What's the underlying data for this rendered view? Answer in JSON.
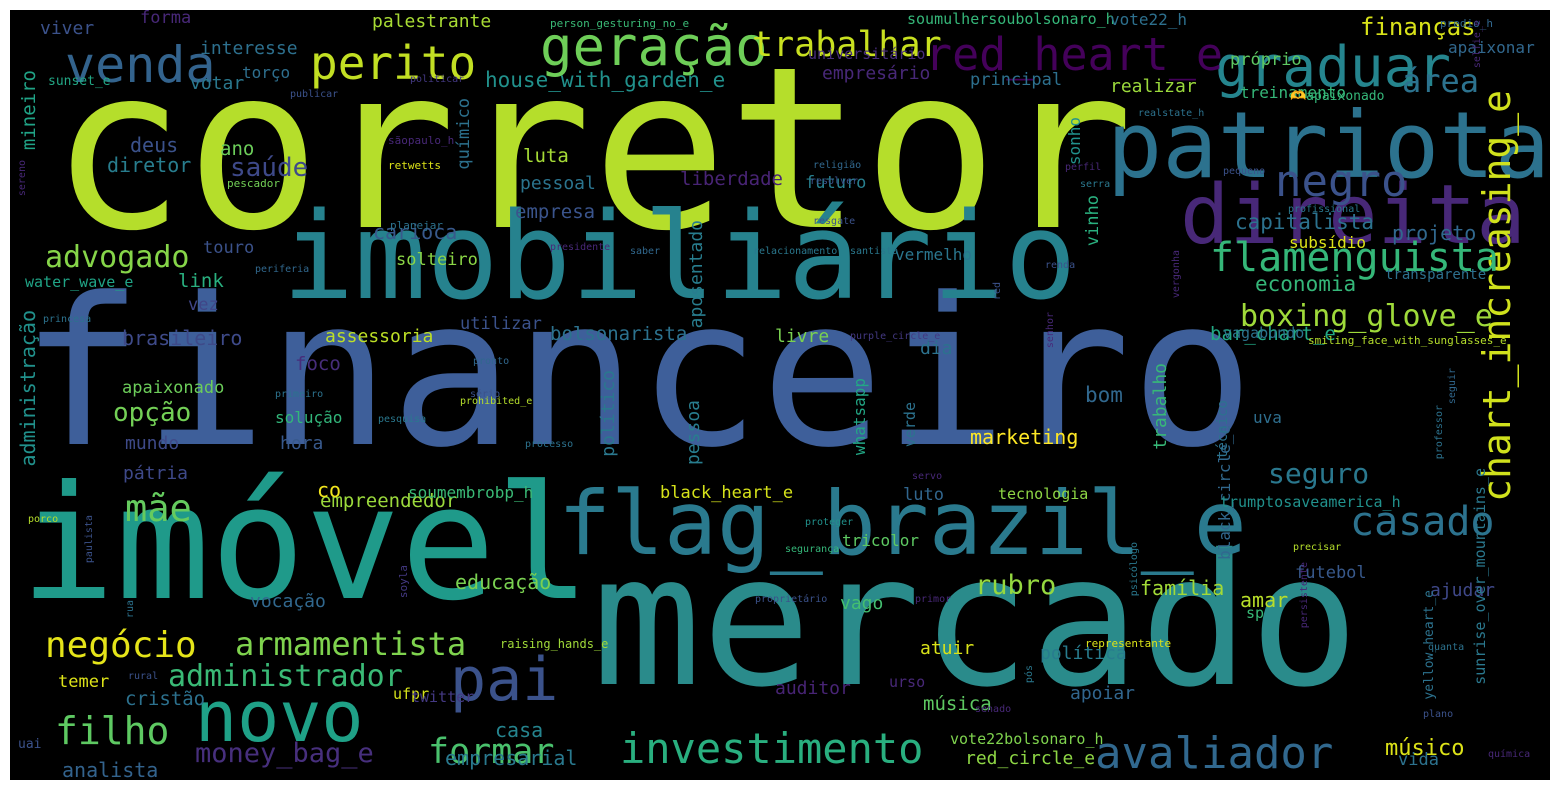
{
  "words": [
    {
      "text": "corretor",
      "color": "#b5de2b"
    },
    {
      "text": "financeiro",
      "color": "#3e5f9a"
    },
    {
      "text": "imobiliário",
      "color": "#26828e"
    },
    {
      "text": "mercado",
      "color": "#2a8b8b"
    },
    {
      "text": "imóvel",
      "color": "#1f9a8a"
    },
    {
      "text": "flag_brazil_e",
      "color": "#2a7a8e"
    },
    {
      "text": "patriota",
      "color": "#2c728e"
    },
    {
      "text": "direita",
      "color": "#482878"
    },
    {
      "text": "geração",
      "color": "#6ece58"
    },
    {
      "text": "perito",
      "color": "#c2df23"
    },
    {
      "text": "venda",
      "color": "#33638d"
    },
    {
      "text": "graduar",
      "color": "#25858e"
    },
    {
      "text": "red_heart_e",
      "color": "#44015a"
    },
    {
      "text": "negro",
      "color": "#3b528b"
    },
    {
      "text": "chart_increasing_e",
      "color": "#d0e11c"
    },
    {
      "text": "flamenguista",
      "color": "#35b779"
    },
    {
      "text": "trabalhar",
      "color": "#c8e020"
    },
    {
      "text": "pai",
      "color": "#3b528b"
    },
    {
      "text": "novo",
      "color": "#1fa187"
    },
    {
      "text": "avaliador",
      "color": "#31688e"
    },
    {
      "text": "investimento",
      "color": "#29af7f"
    },
    {
      "text": "formar",
      "color": "#4ac16d"
    },
    {
      "text": "negócio",
      "color": "#e5e419"
    },
    {
      "text": "armamentista",
      "color": "#7fd34e"
    },
    {
      "text": "administrador",
      "color": "#3aba76"
    },
    {
      "text": "filho",
      "color": "#5ec962"
    },
    {
      "text": "mãe",
      "color": "#65cb5e"
    },
    {
      "text": "advogado",
      "color": "#86d549"
    },
    {
      "text": "boxing_glove_e",
      "color": "#9fda3a"
    },
    {
      "text": "casado",
      "color": "#2c728e"
    },
    {
      "text": "seguro",
      "color": "#2a788e"
    },
    {
      "text": "rubro",
      "color": "#95d840"
    },
    {
      "text": "opção",
      "color": "#73d056"
    },
    {
      "text": "money_bag_e",
      "color": "#472f7d"
    },
    {
      "text": "saúde",
      "color": "#3e4989"
    },
    {
      "text": "área",
      "color": "#2c728e"
    },
    {
      "text": "finanças",
      "color": "#d8e219"
    },
    {
      "text": "house_with_garden_e",
      "color": "#21918c"
    },
    {
      "text": "músico",
      "color": "#dde318"
    },
    {
      "text": "capitalista",
      "color": "#2c728e"
    },
    {
      "text": "economia",
      "color": "#35b779"
    },
    {
      "text": "projeto",
      "color": "#31688e"
    },
    {
      "text": "carioca",
      "color": "#38598c"
    },
    {
      "text": "brasileiro",
      "color": "#3e4a89"
    },
    {
      "text": "assessoria",
      "color": "#bddf26"
    },
    {
      "text": "bolsonarista",
      "color": "#2c728e"
    },
    {
      "text": "bar_chart_e",
      "color": "#22a884"
    },
    {
      "text": "empreendedor",
      "color": "#9bd93c"
    },
    {
      "text": "black_heart_e",
      "color": "#d5e21a"
    },
    {
      "text": "educação",
      "color": "#7ad151"
    },
    {
      "text": "marketing",
      "color": "#fde725"
    },
    {
      "text": "família",
      "color": "#a2da37"
    },
    {
      "text": "analista",
      "color": "#33638d"
    },
    {
      "text": "empresarial",
      "color": "#29798e"
    },
    {
      "text": "casa",
      "color": "#25848e"
    },
    {
      "text": "cristão",
      "color": "#2c718e"
    },
    {
      "text": "política",
      "color": "#287c8e"
    },
    {
      "text": "apoiar",
      "color": "#31668e"
    },
    {
      "text": "auditor",
      "color": "#482475"
    },
    {
      "text": "atuir",
      "color": "#d8e219"
    },
    {
      "text": "música",
      "color": "#5ec962"
    },
    {
      "text": "red_circle_e",
      "color": "#8ed645"
    },
    {
      "text": "amar",
      "color": "#b8de29"
    },
    {
      "text": "futebol",
      "color": "#38598c"
    },
    {
      "text": "ajudar",
      "color": "#3f4889"
    },
    {
      "text": "vida",
      "color": "#2c728e"
    },
    {
      "text": "administração",
      "color": "#21918c"
    },
    {
      "text": "mineiro",
      "color": "#20a386"
    },
    {
      "text": "viver",
      "color": "#3b528b"
    },
    {
      "text": "forma",
      "color": "#482878"
    },
    {
      "text": "interesse",
      "color": "#2d708e"
    },
    {
      "text": "palestrante",
      "color": "#a8db34"
    },
    {
      "text": "votar",
      "color": "#2a788e"
    },
    {
      "text": "torço",
      "color": "#2e6f8e"
    },
    {
      "text": "deus",
      "color": "#3b528b"
    },
    {
      "text": "ano",
      "color": "#6ccd5a"
    },
    {
      "text": "diretor",
      "color": "#287d8e"
    },
    {
      "text": "químico",
      "color": "#2c718e"
    },
    {
      "text": "empresário",
      "color": "#482878"
    },
    {
      "text": "principal",
      "color": "#2d708e"
    },
    {
      "text": "realizar",
      "color": "#9bd93c"
    },
    {
      "text": "próprio",
      "color": "#5ec962"
    },
    {
      "text": "apaixonar",
      "color": "#31688e"
    },
    {
      "text": "treinamento",
      "color": "#35b779"
    },
    {
      "text": "luta",
      "color": "#a5db36"
    },
    {
      "text": "pessoal",
      "color": "#2b748e"
    },
    {
      "text": "empresa",
      "color": "#3a548c"
    },
    {
      "text": "liberdade",
      "color": "#482475"
    },
    {
      "text": "futuro",
      "color": "#277f8e"
    },
    {
      "text": "sonho",
      "color": "#21918c"
    },
    {
      "text": "vinho",
      "color": "#2ab07f"
    },
    {
      "text": "aposentado",
      "color": "#287d8e"
    },
    {
      "text": "touro",
      "color": "#3b528b"
    },
    {
      "text": "solteiro",
      "color": "#8bd646"
    },
    {
      "text": "link",
      "color": "#29af7f"
    },
    {
      "text": "vez",
      "color": "#404688"
    },
    {
      "text": "water_wave_e",
      "color": "#20a486"
    },
    {
      "text": "utilizar",
      "color": "#3b528b"
    },
    {
      "text": "livre",
      "color": "#7ad151"
    },
    {
      "text": "dia",
      "color": "#2c728e"
    },
    {
      "text": "foco",
      "color": "#472d7b"
    },
    {
      "text": "apaixonado",
      "color": "#6ccd5a"
    },
    {
      "text": "mundo",
      "color": "#3e4a89"
    },
    {
      "text": "pátria",
      "color": "#3e4989"
    },
    {
      "text": "hora",
      "color": "#38598c"
    },
    {
      "text": "solução",
      "color": "#32b67a"
    },
    {
      "text": "político",
      "color": "#2a788e"
    },
    {
      "text": "pessoa",
      "color": "#287d8e"
    },
    {
      "text": "bom",
      "color": "#31688e"
    },
    {
      "text": "luto",
      "color": "#31668e"
    },
    {
      "text": "tecnologia",
      "color": "#8ed645"
    },
    {
      "text": "co",
      "color": "#f1e51d"
    },
    {
      "text": "vago",
      "color": "#44bf70"
    },
    {
      "text": "whatsapp",
      "color": "#22a785"
    },
    {
      "text": "verde",
      "color": "#2c728e"
    },
    {
      "text": "black_circle_e",
      "color": "#31688e"
    },
    {
      "text": "trabalho",
      "color": "#37b878"
    },
    {
      "text": "uva",
      "color": "#2e6e8e"
    },
    {
      "text": "técnico",
      "color": "#2c728e"
    },
    {
      "text": "subsídio",
      "color": "#dde318"
    },
    {
      "text": "vermelho",
      "color": "#2a768e"
    },
    {
      "text": "vagabundo",
      "color": "#2c728e"
    },
    {
      "text": "transparente",
      "color": "#2d708e"
    },
    {
      "text": "soumulhersoubolsonaro_h",
      "color": "#35b779"
    },
    {
      "text": "vote22_h",
      "color": "#2d708e"
    },
    {
      "text": "universitário",
      "color": "#472d7b"
    },
    {
      "text": "vote22bolsonaro_h",
      "color": "#7fd34e"
    },
    {
      "text": "trumptosaveamerica_h",
      "color": "#21918c"
    },
    {
      "text": "soumembrobp_h",
      "color": "#3aba76"
    },
    {
      "text": "tricolor",
      "color": "#5ec962"
    },
    {
      "text": "vocação",
      "color": "#31688e"
    },
    {
      "text": "temer",
      "color": "#dde318"
    },
    {
      "text": "ufpr",
      "color": "#d5e21a"
    },
    {
      "text": "urso",
      "color": "#482878"
    },
    {
      "text": "twitter",
      "color": "#443983"
    },
    {
      "text": "sunrise_over_mountains_e",
      "color": "#2a788e"
    },
    {
      "text": "smiling_face_with_sunglasses_e",
      "color": "#b5de2b"
    },
    {
      "text": "yellow_heart_e",
      "color": "#2c728e"
    },
    {
      "text": "sp",
      "color": "#38b977"
    },
    {
      "text": "raising_hands_e",
      "color": "#a0da39"
    },
    {
      "text": "uai",
      "color": "#3b528b"
    },
    {
      "text": "sunset_e",
      "color": "#22a785"
    },
    {
      "text": "person_gesturing_no_e",
      "color": "#3aba76"
    },
    {
      "text": "predio_h",
      "color": "#31688e"
    },
    {
      "text": "publicar",
      "color": "#3b528b"
    },
    {
      "text": "politicar",
      "color": "#443983"
    },
    {
      "text": "sãopaulo_h",
      "color": "#482878"
    },
    {
      "text": "retwetts",
      "color": "#dde318"
    },
    {
      "text": "pescador",
      "color": "#73d056"
    },
    {
      "text": "religião",
      "color": "#31688e"
    },
    {
      "text": "resolver",
      "color": "#3b528b"
    },
    {
      "text": "planejar",
      "color": "#2c728e"
    },
    {
      "text": "presidente",
      "color": "#482878"
    },
    {
      "text": "saber",
      "color": "#31688e"
    },
    {
      "text": "relacionamento",
      "color": "#2a788e"
    },
    {
      "text": "resgate",
      "color": "#3b528b"
    },
    {
      "text": "santista",
      "color": "#2a788e"
    },
    {
      "text": "vergonha",
      "color": "#482878"
    },
    {
      "text": "renda",
      "color": "#3b528b"
    },
    {
      "text": "periferia",
      "color": "#31688e"
    },
    {
      "text": "princesa",
      "color": "#2c728e"
    },
    {
      "text": "senhor",
      "color": "#482878"
    },
    {
      "text": "red",
      "color": "#3b528b"
    },
    {
      "text": "purple_circle_e",
      "color": "#443983"
    },
    {
      "text": "pronto",
      "color": "#31688e"
    },
    {
      "text": "primeiro",
      "color": "#2c728e"
    },
    {
      "text": "sério",
      "color": "#3b528b"
    },
    {
      "text": "prohibited_e",
      "color": "#b5de2b"
    },
    {
      "text": "pesquisa",
      "color": "#2a788e"
    },
    {
      "text": "processo",
      "color": "#2c728e"
    },
    {
      "text": "servo",
      "color": "#482878"
    },
    {
      "text": "porco",
      "color": "#b5de2b"
    },
    {
      "text": "paulista",
      "color": "#3b528b"
    },
    {
      "text": "proteger",
      "color": "#21918c"
    },
    {
      "text": "segurança",
      "color": "#35b779"
    },
    {
      "text": "psicólogo",
      "color": "#2a788e"
    },
    {
      "text": "precisar",
      "color": "#b5de2b"
    },
    {
      "text": "persistente",
      "color": "#482878"
    },
    {
      "text": "soyla",
      "color": "#443983"
    },
    {
      "text": "rua",
      "color": "#2c728e"
    },
    {
      "text": "proprietário",
      "color": "#3b528b"
    },
    {
      "text": "primor",
      "color": "#482878"
    },
    {
      "text": "representante",
      "color": "#dde318"
    },
    {
      "text": "quanta",
      "color": "#2c728e"
    },
    {
      "text": "rural",
      "color": "#3b528b"
    },
    {
      "text": "pós",
      "color": "#2a788e"
    },
    {
      "text": "senado",
      "color": "#482878"
    },
    {
      "text": "plano",
      "color": "#3b528b"
    },
    {
      "text": "química",
      "color": "#482878"
    },
    {
      "text": "selfie_e",
      "color": "#482878"
    },
    {
      "text": "realstate_h",
      "color": "#2c728e"
    },
    {
      "text": "🫶apaixonado",
      "color": "#35b779"
    },
    {
      "text": "perfil",
      "color": "#482878"
    },
    {
      "text": "serra",
      "color": "#2a788e"
    },
    {
      "text": "pequeno",
      "color": "#3b528b"
    },
    {
      "text": "profissional",
      "color": "#2a788e"
    },
    {
      "text": "professor",
      "color": "#2c728e"
    },
    {
      "text": "seguir",
      "color": "#31688e"
    },
    {
      "text": "sereno",
      "color": "#482878"
    }
  ]
}
